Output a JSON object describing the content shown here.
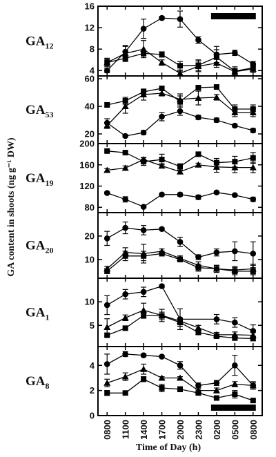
{
  "chart_data": {
    "type": "line",
    "ylabel": "GA content in shoots (ng g⁻¹ DW)",
    "xlabel": "Time of Day (h)",
    "x": [
      "0800",
      "1100",
      "1400",
      "1700",
      "2000",
      "2300",
      "0200",
      "0500",
      "0800"
    ],
    "dark_period": {
      "start": "0200",
      "end": "0800"
    },
    "panels": [
      {
        "name": "GA",
        "subscript": "12",
        "ylim": [
          3,
          16
        ],
        "yticks": [
          4,
          8,
          12,
          16
        ],
        "series": [
          {
            "marker": "circle",
            "values": [
              4.0,
              7.5,
              11.8,
              13.8,
              13.6,
              9.7,
              7.0,
              7.3,
              5.2
            ],
            "errors": [
              0.4,
              1.0,
              1.8,
              0.3,
              1.5,
              0.6,
              1.5,
              0.5,
              0.5
            ]
          },
          {
            "marker": "square",
            "values": [
              5.5,
              6.3,
              7.2,
              7.0,
              4.9,
              5.0,
              6.5,
              3.9,
              4.5
            ],
            "errors": [
              0.8,
              0.6,
              0.5,
              0.5,
              0.8,
              1.0,
              1.4,
              0.8,
              0.8
            ]
          },
          {
            "marker": "triangle",
            "values": [
              5.5,
              7.2,
              8.0,
              5.5,
              3.5,
              4.8,
              5.4,
              3.8,
              4.3
            ],
            "errors": [
              0.6,
              1.5,
              1.6,
              0.5,
              0.4,
              1.0,
              0.8,
              0.6,
              0.6
            ]
          }
        ]
      },
      {
        "name": "GA",
        "subscript": "53",
        "ylim": [
          13,
          62
        ],
        "yticks": [
          20,
          40,
          60
        ],
        "series": [
          {
            "marker": "circle",
            "values": [
              28,
              18.5,
              21,
              32.5,
              36.5,
              32,
              30,
              26,
              22.5
            ],
            "errors": [
              3,
              1,
              1.5,
              3,
              3,
              1.5,
              1.5,
              1,
              1.5
            ]
          },
          {
            "marker": "square",
            "values": [
              41,
              44,
              50.5,
              53,
              43.5,
              53.5,
              54,
              38,
              38
            ],
            "errors": [
              1.5,
              2.5,
              2,
              1.5,
              4,
              1.5,
              1.5,
              3,
              3
            ]
          },
          {
            "marker": "triangle",
            "values": [
              26,
              40,
              48.5,
              49.5,
              45,
              46,
              46.5,
              35.5,
              35.5
            ],
            "errors": [
              2,
              5,
              4,
              2,
              4,
              5,
              2,
              3,
              3
            ]
          }
        ]
      },
      {
        "name": "GA",
        "subscript": "19",
        "ylim": [
          70,
          200
        ],
        "yticks": [
          80,
          120,
          160,
          200
        ],
        "series": [
          {
            "marker": "circle",
            "values": [
              107,
              95,
              81,
              104,
              104,
              99,
              108,
              103,
              95
            ],
            "errors": [
              2,
              5,
              2,
              2,
              3,
              4,
              2,
              2,
              4
            ]
          },
          {
            "marker": "square",
            "values": [
              186,
              183,
              166,
              170,
              157,
              180,
              164,
              166,
              173
            ],
            "errors": [
              2,
              2,
              7,
              10,
              5,
              3,
              8,
              10,
              10
            ]
          },
          {
            "marker": "triangle",
            "values": [
              150,
              154,
              170,
              158,
              147,
              160,
              156,
              155,
              155
            ],
            "errors": [
              3,
              4,
              4,
              4,
              3,
              3,
              10,
              10,
              10
            ]
          }
        ]
      },
      {
        "name": "GA",
        "subscript": "20",
        "ylim": [
          2,
          30
        ],
        "yticks": [
          10,
          20
        ],
        "series": [
          {
            "marker": "circle",
            "values": [
              19,
              23.5,
              22.5,
              23,
              17.5,
              11,
              13,
              13.5,
              12.5
            ],
            "errors": [
              3,
              2.5,
              2,
              0.5,
              2,
              1,
              1.5,
              4,
              5
            ]
          },
          {
            "marker": "square",
            "values": [
              5,
              11.5,
              11.5,
              12.5,
              10,
              6.5,
              6,
              5,
              5
            ],
            "errors": [
              1,
              2,
              2,
              1,
              1,
              1.5,
              1.5,
              1.5,
              1.5
            ]
          },
          {
            "marker": "triangle",
            "values": [
              6,
              13,
              12.5,
              13.5,
              10.5,
              7.5,
              6,
              5.5,
              6
            ],
            "errors": [
              1,
              2,
              4,
              1,
              1,
              1.5,
              1.5,
              1.5,
              2
            ]
          }
        ]
      },
      {
        "name": "GA",
        "subscript": "1",
        "ylim": [
          0.5,
          15
        ],
        "yticks": [
          5,
          10
        ],
        "series": [
          {
            "marker": "circle",
            "values": [
              9.3,
              11.6,
              12.1,
              13.3,
              6.3,
              null,
              6.3,
              5.6,
              3.8
            ],
            "errors": [
              2,
              1,
              1,
              0.3,
              2.2,
              null,
              1,
              1,
              1.3
            ]
          },
          {
            "marker": "square",
            "values": [
              2.9,
              4.4,
              7.1,
              7.0,
              5.6,
              3.5,
              2.7,
              2.3,
              2.2
            ],
            "errors": [
              0.3,
              0.4,
              0.6,
              0.8,
              0.8,
              0.5,
              0.4,
              0.4,
              0.4
            ]
          },
          {
            "marker": "triangle",
            "values": [
              4.6,
              6.6,
              8.2,
              7.1,
              5.9,
              4.5,
              3.0,
              3.0,
              2.9
            ],
            "errors": [
              1.8,
              0.6,
              1.5,
              1.3,
              0.7,
              0.5,
              0.5,
              0.6,
              0.6
            ]
          }
        ]
      },
      {
        "name": "GA",
        "subscript": "8",
        "ylim": [
          0,
          5.5
        ],
        "yticks": [
          0,
          2,
          4
        ],
        "series": [
          {
            "marker": "circle",
            "values": [
              4.1,
              4.9,
              4.8,
              4.7,
              4.0,
              2.4,
              2.6,
              4.0,
              2.4
            ],
            "errors": [
              0.8,
              0.2,
              0.1,
              0.1,
              0.3,
              0.2,
              0.2,
              0.8,
              0.3
            ]
          },
          {
            "marker": "square",
            "values": [
              1.8,
              1.8,
              2.9,
              2.2,
              2.1,
              1.8,
              1.4,
              1.7,
              1.2
            ],
            "errors": [
              0.2,
              0.1,
              0.2,
              0.3,
              0.2,
              0.1,
              0.1,
              0.3,
              0.1
            ]
          },
          {
            "marker": "triangle",
            "values": [
              2.6,
              3.1,
              3.7,
              3.0,
              3.0,
              2.0,
              2.0,
              2.5,
              2.4
            ],
            "errors": [
              0.3,
              0.3,
              0.4,
              0.1,
              0.1,
              0.1,
              0.2,
              0.2,
              0.2
            ]
          }
        ]
      }
    ]
  }
}
